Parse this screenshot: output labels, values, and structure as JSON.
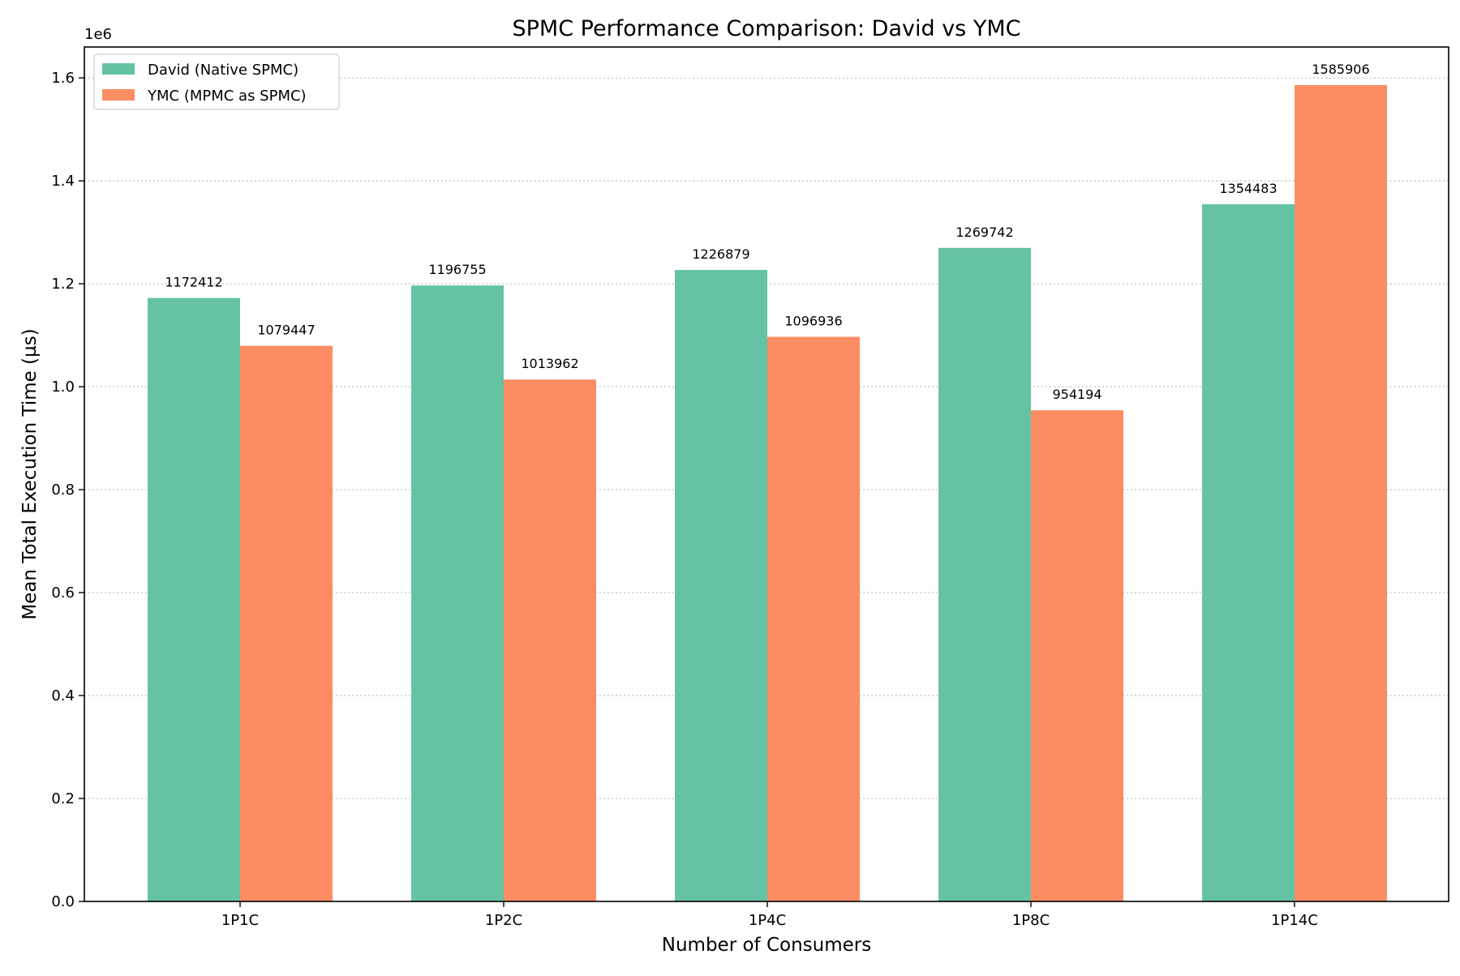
{
  "chart_data": {
    "type": "bar",
    "title": "SPMC Performance Comparison: David vs YMC",
    "xlabel": "Number of Consumers",
    "ylabel": "Mean Total Execution Time (µs)",
    "y_offset_label": "1e6",
    "categories": [
      "1P1C",
      "1P2C",
      "1P4C",
      "1P8C",
      "1P14C"
    ],
    "series": [
      {
        "name": "David (Native SPMC)",
        "color": "#66c2a5",
        "values": [
          1172412,
          1196755,
          1226879,
          1269742,
          1354483
        ],
        "labels": [
          "1172412",
          "1196755",
          "1226879",
          "1269742",
          "1354483"
        ]
      },
      {
        "name": "YMC (MPMC as SPMC)",
        "color": "#fc8d62",
        "values": [
          1079447,
          1013962,
          1096936,
          954194,
          1585906
        ],
        "labels": [
          "1079447",
          "1013962",
          "1096936",
          "954194",
          "1585906"
        ]
      }
    ],
    "ylim": [
      0,
      1660000
    ],
    "yticks": [
      0,
      200000,
      400000,
      600000,
      800000,
      1000000,
      1200000,
      1400000,
      1600000
    ],
    "ytick_labels": [
      "0.0",
      "0.2",
      "0.4",
      "0.6",
      "0.8",
      "1.0",
      "1.2",
      "1.4",
      "1.6"
    ],
    "grid": "y-dotted",
    "legend_position": "top-left"
  }
}
